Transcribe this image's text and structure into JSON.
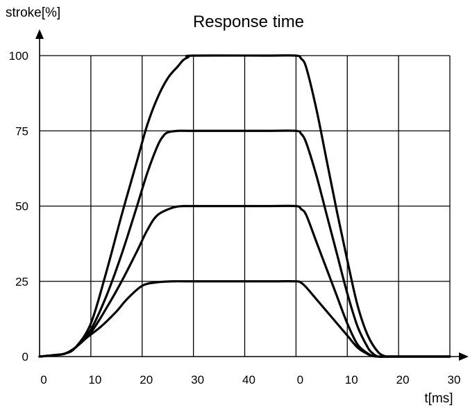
{
  "chart_data": {
    "type": "line",
    "title": "Response time",
    "ylabel": "stroke[%]",
    "xlabel": "t[ms]",
    "ylim": [
      0,
      100
    ],
    "y_ticks": [
      "0",
      "25",
      "50",
      "75",
      "100"
    ],
    "x_tick_labels": [
      "0",
      "10",
      "20",
      "30",
      "40",
      "0",
      "10",
      "20",
      "30"
    ],
    "grid": true,
    "series": [
      {
        "x": [
          0,
          3,
          5,
          7,
          9,
          12,
          15,
          17,
          20,
          23,
          26,
          28,
          30,
          45,
          50,
          51,
          52,
          54,
          56,
          58,
          60,
          62,
          64,
          65,
          66,
          67.5,
          69,
          70,
          72,
          80
        ],
        "y": [
          0,
          0.5,
          1,
          3,
          6,
          10,
          15,
          19,
          23.5,
          24.7,
          25,
          25,
          25,
          25,
          25,
          24.5,
          23,
          19,
          15,
          11,
          7,
          3,
          0.8,
          0.2,
          0,
          0,
          0,
          0,
          0,
          0
        ]
      },
      {
        "x": [
          0,
          3,
          5,
          7,
          10,
          13,
          16,
          19,
          21,
          23,
          26,
          28,
          30,
          45,
          50,
          51,
          52,
          54,
          56,
          58,
          60,
          62,
          64,
          65,
          66,
          67,
          67.5,
          69,
          70,
          72,
          80
        ],
        "y": [
          0,
          0.5,
          1,
          3,
          8,
          16,
          25,
          35,
          42,
          47,
          49.5,
          50,
          50,
          50,
          50,
          49,
          47,
          38,
          29,
          20,
          11,
          4,
          1,
          0.2,
          0,
          0,
          0,
          0,
          0,
          0,
          0
        ]
      },
      {
        "x": [
          0,
          3,
          5,
          7,
          10,
          13,
          16,
          19,
          21,
          23,
          24,
          25,
          27,
          30,
          45,
          50,
          51,
          52,
          54,
          56,
          58,
          60,
          62,
          64,
          65,
          66,
          67.5,
          69,
          70,
          72,
          80
        ],
        "y": [
          0,
          0.5,
          1,
          3,
          9,
          20,
          34,
          50,
          61,
          70,
          73,
          74.5,
          75,
          75,
          75,
          75,
          74,
          71,
          60,
          47,
          34,
          21,
          10,
          3,
          1,
          0,
          0,
          0,
          0,
          0,
          0
        ]
      },
      {
        "x": [
          0,
          3,
          5,
          7,
          10,
          13,
          16,
          19,
          21,
          23,
          25,
          27,
          28,
          29,
          30,
          45,
          50,
          51,
          52,
          54,
          56,
          58,
          60,
          62,
          64,
          66,
          67.5,
          68,
          69,
          70,
          72,
          80
        ],
        "y": [
          0,
          0.5,
          1,
          3,
          11,
          28,
          47,
          65,
          77,
          86,
          92.5,
          96.5,
          98.5,
          99.5,
          100,
          100,
          100,
          99,
          96,
          82,
          65,
          48,
          32,
          17,
          7,
          1.5,
          0,
          0,
          0,
          0,
          0,
          0
        ]
      }
    ]
  }
}
